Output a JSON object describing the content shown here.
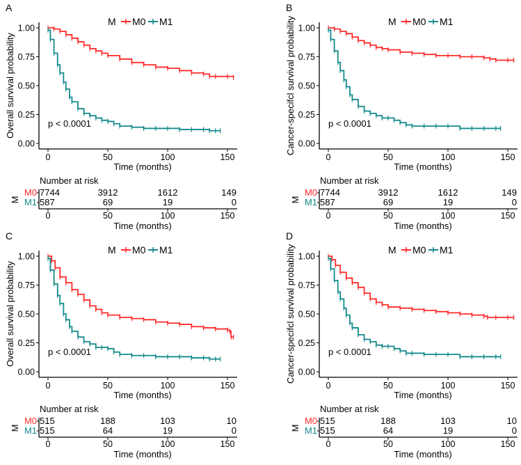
{
  "colors": {
    "M0": "#FF2A2A",
    "M1": "#12898C",
    "axis": "#000000"
  },
  "chart_data": [
    {
      "panel": "A",
      "type": "line",
      "title": "",
      "xlabel": "Time (months)",
      "ylabel": "Overall survival probability",
      "xlim": [
        0,
        155
      ],
      "ylim": [
        0,
        1
      ],
      "xticks": [
        "0",
        "50",
        "100",
        "150"
      ],
      "yticks": [
        "0.00",
        "0.25",
        "0.50",
        "0.75",
        "1.00"
      ],
      "legend": {
        "title": "M",
        "position": "top",
        "entries": [
          "M0",
          "M1"
        ]
      },
      "annotation": "p < 0.0001",
      "series": [
        {
          "name": "M0",
          "x": [
            0,
            5,
            10,
            15,
            20,
            25,
            30,
            35,
            40,
            45,
            50,
            60,
            70,
            80,
            90,
            100,
            110,
            120,
            130,
            135,
            140,
            150,
            155
          ],
          "y": [
            1.0,
            0.99,
            0.97,
            0.94,
            0.91,
            0.88,
            0.85,
            0.82,
            0.8,
            0.78,
            0.76,
            0.73,
            0.7,
            0.68,
            0.66,
            0.65,
            0.63,
            0.61,
            0.6,
            0.58,
            0.58,
            0.58,
            0.57
          ]
        },
        {
          "name": "M1",
          "x": [
            0,
            2,
            5,
            8,
            10,
            13,
            15,
            18,
            20,
            25,
            30,
            35,
            40,
            45,
            50,
            55,
            60,
            70,
            80,
            90,
            100,
            110,
            120,
            130,
            135,
            140,
            144
          ],
          "y": [
            0.98,
            0.9,
            0.78,
            0.68,
            0.61,
            0.53,
            0.47,
            0.4,
            0.36,
            0.3,
            0.26,
            0.24,
            0.22,
            0.2,
            0.19,
            0.17,
            0.15,
            0.14,
            0.13,
            0.13,
            0.13,
            0.12,
            0.12,
            0.12,
            0.11,
            0.11,
            0.11
          ]
        }
      ],
      "risk_table": {
        "title": "Number at risk",
        "strata_label": "M",
        "times": [
          0,
          50,
          100,
          150
        ],
        "rows": [
          {
            "name": "M0",
            "values": [
              "7744",
              "3912",
              "1612",
              "149"
            ]
          },
          {
            "name": "M1",
            "values": [
              "587",
              "69",
              "19",
              "0"
            ]
          }
        ],
        "xlabel": "Time (months)"
      }
    },
    {
      "panel": "B",
      "type": "line",
      "title": "",
      "xlabel": "Time (months)",
      "ylabel": "Cancer-specifcl survival probability",
      "xlim": [
        0,
        155
      ],
      "ylim": [
        0,
        1
      ],
      "xticks": [
        "0",
        "50",
        "100",
        "150"
      ],
      "yticks": [
        "0.00",
        "0.25",
        "0.50",
        "0.75",
        "1.00"
      ],
      "legend": {
        "title": "M",
        "position": "top",
        "entries": [
          "M0",
          "M1"
        ]
      },
      "annotation": "p < 0.0001",
      "series": [
        {
          "name": "M0",
          "x": [
            0,
            5,
            10,
            15,
            20,
            25,
            30,
            35,
            40,
            45,
            50,
            60,
            70,
            80,
            90,
            100,
            110,
            120,
            130,
            135,
            140,
            150,
            155
          ],
          "y": [
            1.0,
            0.99,
            0.97,
            0.95,
            0.92,
            0.89,
            0.87,
            0.85,
            0.83,
            0.82,
            0.81,
            0.79,
            0.78,
            0.77,
            0.76,
            0.76,
            0.75,
            0.75,
            0.74,
            0.73,
            0.72,
            0.72,
            0.72
          ]
        },
        {
          "name": "M1",
          "x": [
            0,
            2,
            5,
            8,
            10,
            13,
            15,
            18,
            20,
            25,
            30,
            35,
            40,
            45,
            50,
            55,
            60,
            65,
            70,
            80,
            90,
            100,
            110,
            120,
            130,
            140,
            144
          ],
          "y": [
            0.98,
            0.9,
            0.8,
            0.7,
            0.63,
            0.55,
            0.49,
            0.42,
            0.38,
            0.32,
            0.28,
            0.26,
            0.24,
            0.22,
            0.22,
            0.2,
            0.18,
            0.16,
            0.15,
            0.15,
            0.15,
            0.15,
            0.13,
            0.13,
            0.13,
            0.13,
            0.13
          ]
        }
      ],
      "risk_table": {
        "title": "Number at risk",
        "strata_label": "M",
        "times": [
          0,
          50,
          100,
          150
        ],
        "rows": [
          {
            "name": "M0",
            "values": [
              "7744",
              "3912",
              "1612",
              "149"
            ]
          },
          {
            "name": "M1",
            "values": [
              "587",
              "69",
              "19",
              "0"
            ]
          }
        ],
        "xlabel": "Time (months)"
      }
    },
    {
      "panel": "C",
      "type": "line",
      "title": "",
      "xlabel": "Time (months)",
      "ylabel": "Overall survival probability",
      "xlim": [
        0,
        155
      ],
      "ylim": [
        0,
        1
      ],
      "xticks": [
        "0",
        "50",
        "100",
        "150"
      ],
      "yticks": [
        "0.00",
        "0.25",
        "0.50",
        "0.75",
        "1.00"
      ],
      "legend": {
        "title": "M",
        "position": "top",
        "entries": [
          "M0",
          "M1"
        ]
      },
      "annotation": "p < 0.0001",
      "series": [
        {
          "name": "M0",
          "x": [
            0,
            3,
            6,
            10,
            15,
            20,
            25,
            30,
            35,
            40,
            45,
            50,
            60,
            70,
            80,
            90,
            100,
            110,
            120,
            130,
            140,
            150,
            152,
            153,
            155
          ],
          "y": [
            1.0,
            0.96,
            0.9,
            0.82,
            0.77,
            0.71,
            0.67,
            0.62,
            0.57,
            0.54,
            0.51,
            0.49,
            0.47,
            0.46,
            0.45,
            0.43,
            0.42,
            0.41,
            0.39,
            0.38,
            0.37,
            0.36,
            0.35,
            0.3,
            0.3
          ]
        },
        {
          "name": "M1",
          "x": [
            0,
            2,
            5,
            8,
            10,
            13,
            15,
            18,
            20,
            25,
            30,
            35,
            40,
            45,
            50,
            55,
            60,
            70,
            80,
            90,
            100,
            110,
            120,
            130,
            135,
            140,
            144
          ],
          "y": [
            0.98,
            0.88,
            0.76,
            0.66,
            0.59,
            0.5,
            0.45,
            0.39,
            0.35,
            0.3,
            0.26,
            0.24,
            0.21,
            0.21,
            0.2,
            0.17,
            0.15,
            0.14,
            0.14,
            0.13,
            0.13,
            0.13,
            0.12,
            0.12,
            0.11,
            0.11,
            0.11
          ]
        }
      ],
      "risk_table": {
        "title": "Number at risk",
        "strata_label": "M",
        "times": [
          0,
          50,
          100,
          150
        ],
        "rows": [
          {
            "name": "M0",
            "values": [
              "515",
              "188",
              "103",
              "10"
            ]
          },
          {
            "name": "M1",
            "values": [
              "515",
              "64",
              "19",
              "0"
            ]
          }
        ],
        "xlabel": "Time (months)"
      }
    },
    {
      "panel": "D",
      "type": "line",
      "title": "",
      "xlabel": "Time (months)",
      "ylabel": "Cancer-specifcl survival probability",
      "xlim": [
        0,
        155
      ],
      "ylim": [
        0,
        1
      ],
      "xticks": [
        "0",
        "50",
        "100",
        "150"
      ],
      "yticks": [
        "0.00",
        "0.25",
        "0.50",
        "0.75",
        "1.00"
      ],
      "legend": {
        "title": "M",
        "position": "top",
        "entries": [
          "M0",
          "M1"
        ]
      },
      "annotation": "p < 0.0001",
      "series": [
        {
          "name": "M0",
          "x": [
            0,
            3,
            6,
            10,
            15,
            20,
            25,
            30,
            35,
            40,
            45,
            50,
            60,
            70,
            80,
            90,
            100,
            110,
            120,
            130,
            133,
            140,
            150,
            155
          ],
          "y": [
            1.0,
            0.97,
            0.92,
            0.86,
            0.81,
            0.77,
            0.73,
            0.68,
            0.63,
            0.6,
            0.58,
            0.56,
            0.55,
            0.54,
            0.53,
            0.52,
            0.51,
            0.5,
            0.49,
            0.48,
            0.47,
            0.47,
            0.47,
            0.47
          ]
        },
        {
          "name": "M1",
          "x": [
            0,
            2,
            5,
            8,
            10,
            13,
            15,
            18,
            20,
            25,
            30,
            35,
            40,
            45,
            50,
            55,
            60,
            65,
            70,
            80,
            90,
            100,
            110,
            120,
            130,
            140,
            144
          ],
          "y": [
            0.98,
            0.89,
            0.79,
            0.69,
            0.63,
            0.55,
            0.49,
            0.42,
            0.38,
            0.32,
            0.28,
            0.26,
            0.23,
            0.22,
            0.22,
            0.2,
            0.18,
            0.16,
            0.16,
            0.15,
            0.15,
            0.15,
            0.13,
            0.13,
            0.13,
            0.13,
            0.13
          ]
        }
      ],
      "risk_table": {
        "title": "Number at risk",
        "strata_label": "M",
        "times": [
          0,
          50,
          100,
          150
        ],
        "rows": [
          {
            "name": "M0",
            "values": [
              "515",
              "188",
              "103",
              "10"
            ]
          },
          {
            "name": "M1",
            "values": [
              "515",
              "64",
              "19",
              "0"
            ]
          }
        ],
        "xlabel": "Time (months)"
      }
    }
  ]
}
